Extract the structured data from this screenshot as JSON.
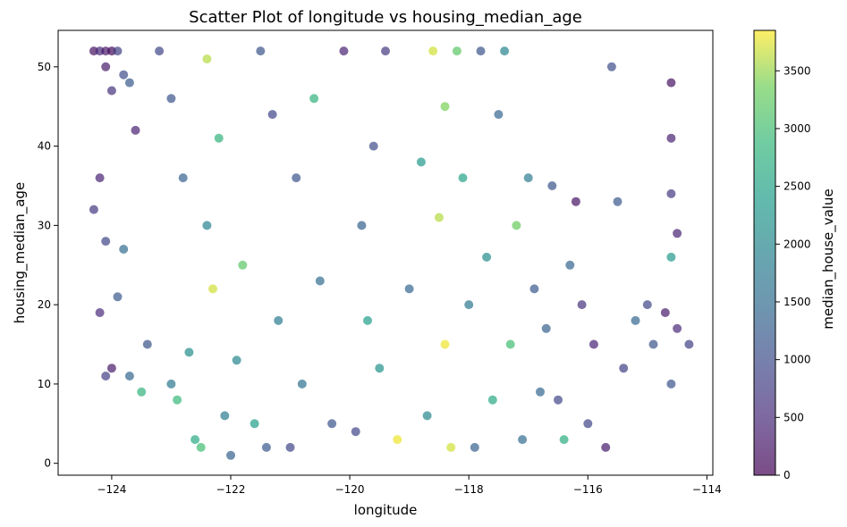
{
  "chart_data": {
    "type": "scatter",
    "title": "Scatter Plot of longitude vs housing_median_age",
    "xlabel": "longitude",
    "ylabel": "housing_median_age",
    "xlim": [
      -124.9,
      -113.9
    ],
    "ylim": [
      -1.5,
      54.6
    ],
    "x_ticks": [
      -124,
      -122,
      -120,
      -118,
      -116,
      -114
    ],
    "x_tick_labels": [
      "−124",
      "−122",
      "−120",
      "−118",
      "−116",
      "−114"
    ],
    "y_ticks": [
      0,
      10,
      20,
      30,
      40,
      50
    ],
    "y_tick_labels": [
      "0",
      "10",
      "20",
      "30",
      "40",
      "50"
    ],
    "grid": false,
    "marker_alpha": 0.7,
    "colormap": "viridis",
    "colorbar": {
      "label": "median_house_value",
      "range": [
        0,
        3850
      ],
      "ticks": [
        0,
        500,
        1000,
        1500,
        2000,
        2500,
        3000,
        3500
      ],
      "tick_labels": [
        "0",
        "500",
        "1000",
        "1500",
        "2000",
        "2500",
        "3000",
        "3500"
      ]
    },
    "points_xyc": [
      [
        -124.3,
        52,
        200
      ],
      [
        -124.2,
        52,
        500
      ],
      [
        -124.1,
        52,
        300
      ],
      [
        -124.0,
        52,
        100
      ],
      [
        -123.9,
        52,
        800
      ],
      [
        -124.1,
        50,
        300
      ],
      [
        -123.8,
        49,
        1000
      ],
      [
        -124.0,
        47,
        600
      ],
      [
        -124.2,
        36,
        400
      ],
      [
        -124.3,
        32,
        700
      ],
      [
        -124.1,
        28,
        900
      ],
      [
        -124.2,
        19,
        500
      ],
      [
        -124.1,
        11,
        800
      ],
      [
        -124.0,
        12,
        300
      ],
      [
        -123.9,
        21,
        1200
      ],
      [
        -123.8,
        27,
        1500
      ],
      [
        -123.7,
        11,
        1400
      ],
      [
        -123.5,
        9,
        2800
      ],
      [
        -123.4,
        15,
        1100
      ],
      [
        -123.6,
        42,
        400
      ],
      [
        -123.7,
        48,
        1200
      ],
      [
        -123.2,
        52,
        900
      ],
      [
        -123.0,
        46,
        1100
      ],
      [
        -123.0,
        10,
        1700
      ],
      [
        -122.9,
        8,
        2900
      ],
      [
        -122.8,
        36,
        1300
      ],
      [
        -122.7,
        14,
        2100
      ],
      [
        -122.6,
        3,
        2600
      ],
      [
        -122.5,
        2,
        3000
      ],
      [
        -122.4,
        51,
        3600
      ],
      [
        -122.3,
        22,
        3700
      ],
      [
        -122.2,
        41,
        2800
      ],
      [
        -122.4,
        30,
        1900
      ],
      [
        -122.1,
        6,
        1800
      ],
      [
        -122.0,
        1,
        1300
      ],
      [
        -121.9,
        13,
        2000
      ],
      [
        -121.8,
        25,
        3200
      ],
      [
        -121.6,
        5,
        2400
      ],
      [
        -121.5,
        52,
        1100
      ],
      [
        -121.4,
        2,
        1200
      ],
      [
        -121.3,
        44,
        900
      ],
      [
        -121.2,
        18,
        1800
      ],
      [
        -121.0,
        2,
        900
      ],
      [
        -120.9,
        36,
        1100
      ],
      [
        -120.8,
        10,
        1600
      ],
      [
        -120.6,
        46,
        2800
      ],
      [
        -120.5,
        23,
        1500
      ],
      [
        -120.3,
        5,
        1100
      ],
      [
        -120.1,
        52,
        400
      ],
      [
        -119.9,
        4,
        900
      ],
      [
        -119.8,
        30,
        1300
      ],
      [
        -119.7,
        18,
        2400
      ],
      [
        -119.6,
        40,
        1000
      ],
      [
        -119.5,
        12,
        2200
      ],
      [
        -119.4,
        52,
        700
      ],
      [
        -119.2,
        3,
        3800
      ],
      [
        -119.0,
        22,
        1400
      ],
      [
        -118.8,
        38,
        2300
      ],
      [
        -118.7,
        6,
        2000
      ],
      [
        -118.6,
        52,
        3700
      ],
      [
        -118.5,
        31,
        3600
      ],
      [
        -118.4,
        45,
        3400
      ],
      [
        -118.4,
        15,
        3800
      ],
      [
        -118.3,
        2,
        3700
      ],
      [
        -118.2,
        52,
        3200
      ],
      [
        -118.1,
        36,
        2500
      ],
      [
        -118.0,
        20,
        1700
      ],
      [
        -117.9,
        2,
        1300
      ],
      [
        -117.8,
        52,
        1100
      ],
      [
        -117.7,
        26,
        2100
      ],
      [
        -117.6,
        8,
        2600
      ],
      [
        -117.5,
        44,
        1400
      ],
      [
        -117.4,
        52,
        1900
      ],
      [
        -117.3,
        15,
        3000
      ],
      [
        -117.2,
        30,
        3300
      ],
      [
        -117.1,
        3,
        1500
      ],
      [
        -117.0,
        36,
        1800
      ],
      [
        -116.9,
        22,
        1200
      ],
      [
        -116.8,
        9,
        1400
      ],
      [
        -116.7,
        17,
        1300
      ],
      [
        -116.6,
        35,
        1100
      ],
      [
        -116.5,
        8,
        900
      ],
      [
        -116.4,
        3,
        2700
      ],
      [
        -116.3,
        25,
        1400
      ],
      [
        -116.2,
        33,
        200
      ],
      [
        -116.1,
        20,
        600
      ],
      [
        -116.0,
        5,
        900
      ],
      [
        -115.9,
        15,
        400
      ],
      [
        -115.7,
        2,
        300
      ],
      [
        -115.6,
        50,
        1000
      ],
      [
        -115.5,
        33,
        1200
      ],
      [
        -115.4,
        12,
        800
      ],
      [
        -115.2,
        18,
        1400
      ],
      [
        -115.0,
        20,
        900
      ],
      [
        -114.9,
        15,
        1100
      ],
      [
        -114.7,
        19,
        300
      ],
      [
        -114.6,
        48,
        200
      ],
      [
        -114.6,
        41,
        400
      ],
      [
        -114.6,
        26,
        2300
      ],
      [
        -114.5,
        17,
        500
      ],
      [
        -114.3,
        15,
        800
      ],
      [
        -114.6,
        10,
        1100
      ],
      [
        -114.5,
        29,
        400
      ],
      [
        -114.6,
        34,
        700
      ]
    ]
  }
}
